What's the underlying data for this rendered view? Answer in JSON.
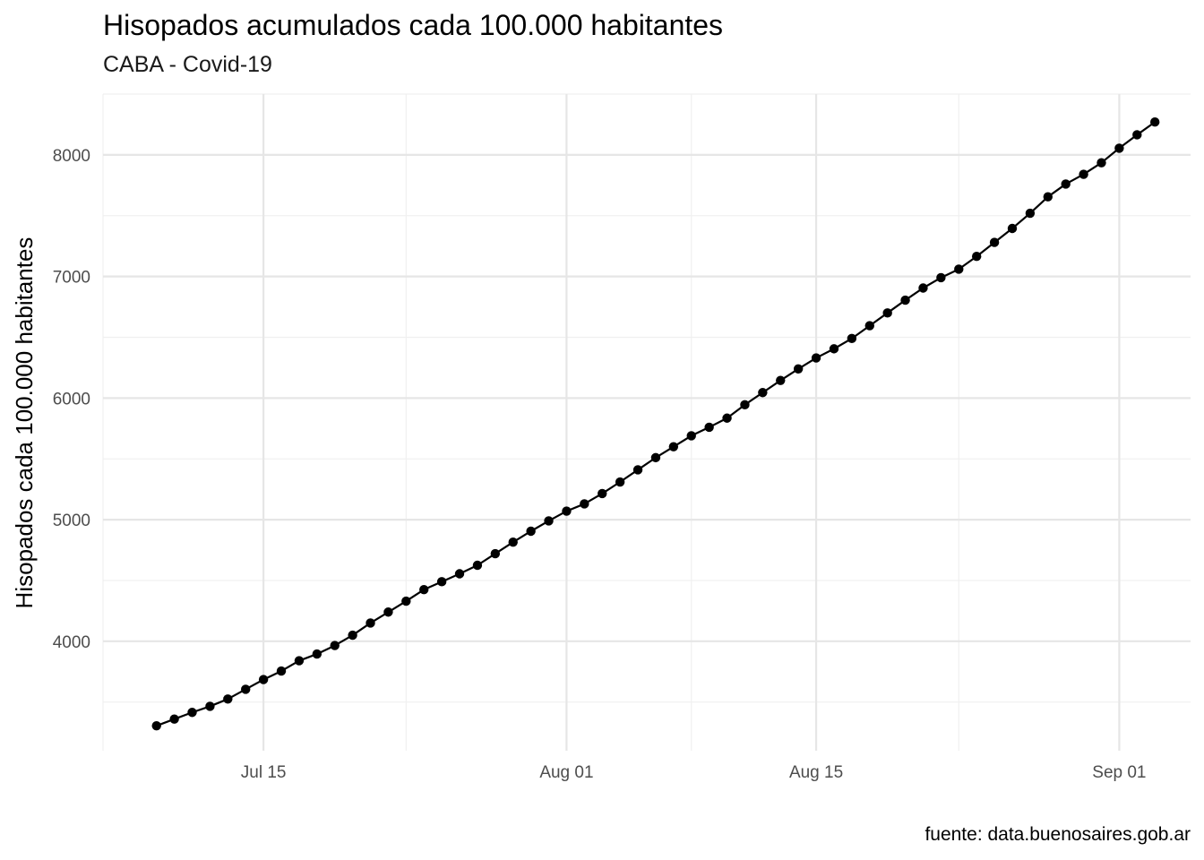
{
  "chart_data": {
    "type": "line",
    "title": "Hisopados acumulados cada 100.000 habitantes",
    "subtitle": "CABA - Covid-19",
    "caption": "fuente: data.buenosaires.gob.ar",
    "xlabel": "",
    "ylabel": "Hisopados cada 100.000 habitantes",
    "x_axis_type": "date",
    "x_ticks": [
      {
        "date": "2020-07-15",
        "label": "Jul 15"
      },
      {
        "date": "2020-08-01",
        "label": "Aug 01"
      },
      {
        "date": "2020-08-15",
        "label": "Aug 15"
      },
      {
        "date": "2020-09-01",
        "label": "Sep 01"
      }
    ],
    "y_ticks": [
      4000,
      5000,
      6000,
      7000,
      8000
    ],
    "xlim": [
      "2020-07-06",
      "2020-09-05"
    ],
    "ylim": [
      3100,
      8500
    ],
    "grid": true,
    "series": [
      {
        "color": "#000000",
        "x": [
          "2020-07-09",
          "2020-07-10",
          "2020-07-11",
          "2020-07-12",
          "2020-07-13",
          "2020-07-14",
          "2020-07-15",
          "2020-07-16",
          "2020-07-17",
          "2020-07-18",
          "2020-07-19",
          "2020-07-20",
          "2020-07-21",
          "2020-07-22",
          "2020-07-23",
          "2020-07-24",
          "2020-07-25",
          "2020-07-26",
          "2020-07-27",
          "2020-07-28",
          "2020-07-29",
          "2020-07-30",
          "2020-07-31",
          "2020-08-01",
          "2020-08-02",
          "2020-08-03",
          "2020-08-04",
          "2020-08-05",
          "2020-08-06",
          "2020-08-07",
          "2020-08-08",
          "2020-08-09",
          "2020-08-10",
          "2020-08-11",
          "2020-08-12",
          "2020-08-13",
          "2020-08-14",
          "2020-08-15",
          "2020-08-16",
          "2020-08-17",
          "2020-08-18",
          "2020-08-19",
          "2020-08-20",
          "2020-08-21",
          "2020-08-22",
          "2020-08-23",
          "2020-08-24",
          "2020-08-25",
          "2020-08-26",
          "2020-08-27",
          "2020-08-28",
          "2020-08-29",
          "2020-08-30",
          "2020-08-31",
          "2020-09-01",
          "2020-09-02",
          "2020-09-03"
        ],
        "values": [
          3305,
          3360,
          3415,
          3465,
          3525,
          3605,
          3685,
          3755,
          3840,
          3895,
          3965,
          4050,
          4150,
          4240,
          4330,
          4425,
          4490,
          4555,
          4625,
          4720,
          4815,
          4905,
          4990,
          5070,
          5130,
          5215,
          5310,
          5410,
          5510,
          5600,
          5690,
          5760,
          5835,
          5945,
          6045,
          6145,
          6240,
          6330,
          6405,
          6490,
          6595,
          6700,
          6805,
          6905,
          6990,
          7060,
          7165,
          7280,
          7395,
          7520,
          7655,
          7760,
          7840,
          7935,
          8055,
          8165,
          8270
        ]
      }
    ]
  }
}
